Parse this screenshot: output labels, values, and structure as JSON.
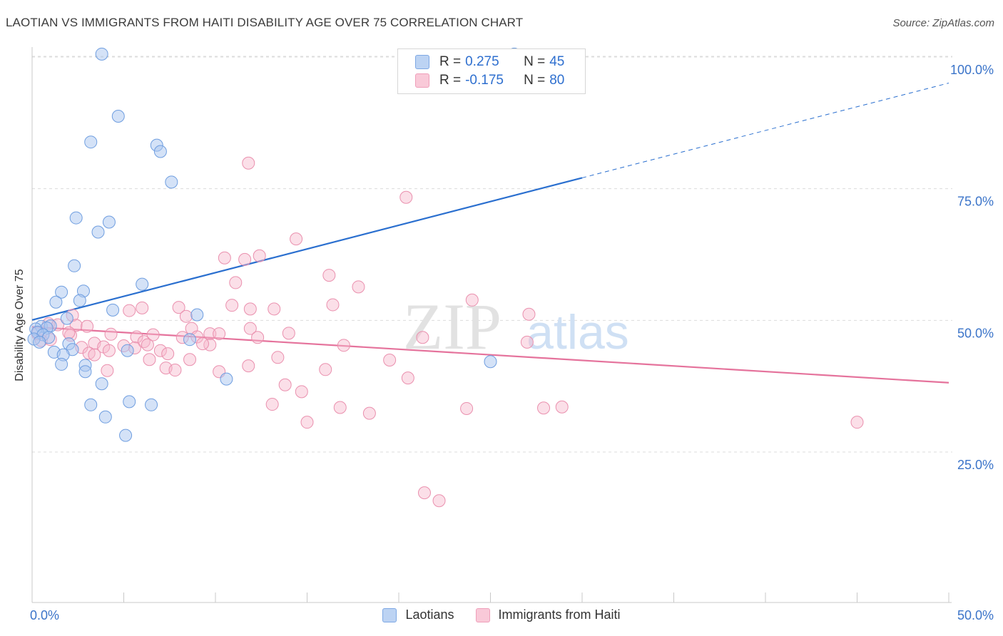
{
  "header": {
    "title": "LAOTIAN VS IMMIGRANTS FROM HAITI DISABILITY AGE OVER 75 CORRELATION CHART",
    "source": "Source: ZipAtlas.com"
  },
  "watermark": {
    "zip": "ZIP",
    "atlas": "atlas"
  },
  "stats_legend": {
    "rows": [
      {
        "r_label": "R =",
        "r_value": "0.275",
        "n_label": "N =",
        "n_value": "45"
      },
      {
        "r_label": "R =",
        "r_value": "-0.175",
        "n_label": "N =",
        "n_value": "80"
      }
    ]
  },
  "chart_data": {
    "type": "scatter",
    "title": "LAOTIAN VS IMMIGRANTS FROM HAITI DISABILITY AGE OVER 75 CORRELATION CHART",
    "ylabel": "Disability Age Over 75",
    "xlabel": "",
    "xlim": [
      0,
      50
    ],
    "ylim": [
      0,
      105
    ],
    "x_tick_labels": [
      "0.0%",
      "50.0%"
    ],
    "y_tick_labels": [
      "100.0%",
      "75.0%",
      "50.0%",
      "25.0%"
    ],
    "y_ticks": [
      100,
      75,
      50,
      25
    ],
    "grid": "horizontal dashed",
    "legend_position": "bottom-center",
    "colors": {
      "laotians_fill": "#a9c6f0",
      "laotians_stroke": "#6f9ee0",
      "laotians_line": "#2a6fcf",
      "haiti_fill": "#f6b8cc",
      "haiti_stroke": "#ea90ae",
      "haiti_line": "#e5739c",
      "tick_label": "#3b74c9"
    },
    "series": [
      {
        "name": "Laotians",
        "r": 0.275,
        "n": 45,
        "trend": {
          "x": [
            0,
            30,
            50
          ],
          "y": [
            52.5,
            79.5,
            97.5
          ],
          "solid_until_x": 30
        },
        "points": [
          [
            3.8,
            103
          ],
          [
            26.3,
            103
          ],
          [
            4.7,
            91.2
          ],
          [
            3.2,
            86.3
          ],
          [
            6.8,
            85.7
          ],
          [
            7.0,
            84.5
          ],
          [
            7.6,
            78.7
          ],
          [
            2.4,
            71.9
          ],
          [
            4.2,
            71.1
          ],
          [
            3.6,
            69.2
          ],
          [
            2.3,
            62.8
          ],
          [
            6.0,
            59.3
          ],
          [
            1.6,
            57.8
          ],
          [
            2.8,
            58.0
          ],
          [
            1.3,
            55.9
          ],
          [
            2.6,
            56.2
          ],
          [
            4.4,
            54.4
          ],
          [
            9.0,
            53.5
          ],
          [
            1.9,
            52.8
          ],
          [
            0.5,
            51.3
          ],
          [
            1.0,
            51.4
          ],
          [
            0.8,
            51.0
          ],
          [
            0.2,
            50.8
          ],
          [
            0.3,
            50.2
          ],
          [
            0.6,
            49.7
          ],
          [
            0.9,
            49.2
          ],
          [
            0.1,
            48.9
          ],
          [
            0.4,
            48.3
          ],
          [
            2.0,
            48.0
          ],
          [
            8.6,
            48.8
          ],
          [
            1.2,
            46.4
          ],
          [
            2.2,
            46.9
          ],
          [
            1.7,
            45.9
          ],
          [
            5.2,
            46.7
          ],
          [
            1.6,
            44.1
          ],
          [
            2.9,
            43.9
          ],
          [
            2.9,
            42.7
          ],
          [
            10.6,
            41.3
          ],
          [
            3.8,
            40.4
          ],
          [
            5.3,
            37.0
          ],
          [
            3.2,
            36.4
          ],
          [
            6.5,
            36.4
          ],
          [
            4.0,
            34.1
          ],
          [
            5.1,
            30.6
          ],
          [
            25.0,
            44.6
          ]
        ]
      },
      {
        "name": "Immigrants from Haiti",
        "r": -0.175,
        "n": 80,
        "trend": {
          "x": [
            0,
            50
          ],
          "y": [
            51.2,
            40.6
          ]
        },
        "points": [
          [
            11.8,
            82.3
          ],
          [
            20.4,
            75.8
          ],
          [
            14.4,
            67.9
          ],
          [
            10.5,
            64.3
          ],
          [
            11.6,
            64.0
          ],
          [
            12.4,
            64.7
          ],
          [
            16.2,
            61.0
          ],
          [
            11.1,
            59.6
          ],
          [
            17.8,
            58.8
          ],
          [
            24.0,
            56.3
          ],
          [
            6.0,
            54.8
          ],
          [
            5.3,
            54.3
          ],
          [
            8.0,
            54.9
          ],
          [
            10.9,
            55.3
          ],
          [
            11.9,
            54.6
          ],
          [
            13.2,
            54.6
          ],
          [
            16.4,
            55.4
          ],
          [
            27.1,
            53.6
          ],
          [
            2.2,
            53.4
          ],
          [
            8.4,
            53.2
          ],
          [
            0.9,
            51.8
          ],
          [
            1.4,
            51.6
          ],
          [
            2.4,
            51.5
          ],
          [
            3.0,
            51.3
          ],
          [
            8.7,
            50.9
          ],
          [
            11.9,
            50.9
          ],
          [
            9.7,
            49.9
          ],
          [
            10.2,
            49.9
          ],
          [
            14.0,
            50.0
          ],
          [
            4.3,
            49.8
          ],
          [
            6.6,
            49.7
          ],
          [
            2.1,
            49.6
          ],
          [
            5.7,
            49.3
          ],
          [
            6.1,
            48.4
          ],
          [
            8.2,
            49.2
          ],
          [
            9.0,
            49.3
          ],
          [
            21.3,
            49.2
          ],
          [
            27.0,
            48.3
          ],
          [
            0.5,
            48.6
          ],
          [
            1.0,
            48.8
          ],
          [
            3.4,
            48.1
          ],
          [
            2.7,
            47.3
          ],
          [
            3.9,
            47.4
          ],
          [
            5.6,
            47.2
          ],
          [
            6.3,
            47.8
          ],
          [
            9.7,
            47.8
          ],
          [
            7.0,
            46.7
          ],
          [
            7.4,
            46.1
          ],
          [
            3.1,
            46.2
          ],
          [
            3.4,
            45.9
          ],
          [
            4.2,
            46.7
          ],
          [
            6.4,
            45.0
          ],
          [
            8.6,
            45.0
          ],
          [
            10.2,
            42.7
          ],
          [
            11.8,
            43.8
          ],
          [
            13.4,
            45.4
          ],
          [
            7.3,
            43.4
          ],
          [
            7.8,
            43.0
          ],
          [
            16.0,
            43.1
          ],
          [
            4.1,
            42.9
          ],
          [
            19.5,
            44.9
          ],
          [
            20.5,
            41.5
          ],
          [
            13.8,
            40.2
          ],
          [
            14.7,
            38.9
          ],
          [
            16.8,
            35.9
          ],
          [
            13.1,
            36.5
          ],
          [
            23.7,
            35.7
          ],
          [
            27.9,
            35.8
          ],
          [
            28.9,
            36.0
          ],
          [
            45.0,
            33.1
          ],
          [
            15.0,
            33.1
          ],
          [
            22.2,
            18.2
          ],
          [
            21.4,
            19.7
          ],
          [
            18.4,
            34.8
          ],
          [
            2.0,
            50.1
          ],
          [
            0.3,
            49.9
          ],
          [
            12.3,
            49.2
          ],
          [
            17.0,
            47.7
          ],
          [
            5.0,
            47.6
          ],
          [
            9.3,
            48.0
          ]
        ]
      }
    ]
  }
}
